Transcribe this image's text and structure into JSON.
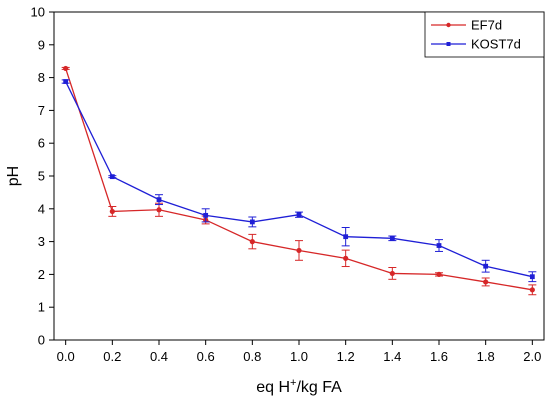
{
  "chart_data": {
    "type": "line",
    "x": [
      0.0,
      0.2,
      0.4,
      0.6,
      0.8,
      1.0,
      1.2,
      1.4,
      1.6,
      1.8,
      2.0
    ],
    "x_ticks": [
      "0.0",
      "0.2",
      "0.4",
      "0.6",
      "0.8",
      "1.0",
      "1.2",
      "1.4",
      "1.6",
      "1.8",
      "2.0"
    ],
    "y_ticks": [
      "0",
      "1",
      "2",
      "3",
      "4",
      "5",
      "6",
      "7",
      "8",
      "9",
      "10"
    ],
    "xlim": [
      -0.05,
      2.05
    ],
    "ylim": [
      0,
      10
    ],
    "xlabel_main": "eq H",
    "xlabel_sup": "+",
    "xlabel_tail": "/kg FA",
    "ylabel": "pH",
    "legend_position": "top-right",
    "series": [
      {
        "name": "EF7d",
        "color": "#d62728",
        "marker": "circle",
        "values": [
          8.28,
          3.92,
          3.97,
          3.66,
          3.0,
          2.73,
          2.49,
          2.03,
          2.0,
          1.77,
          1.53
        ],
        "errors": [
          0.03,
          0.15,
          0.2,
          0.12,
          0.22,
          0.3,
          0.25,
          0.18,
          0.05,
          0.12,
          0.15
        ]
      },
      {
        "name": "KOST7d",
        "color": "#1f1fd6",
        "marker": "square",
        "values": [
          7.88,
          4.98,
          4.28,
          3.8,
          3.6,
          3.82,
          3.15,
          3.1,
          2.88,
          2.25,
          1.93
        ],
        "errors": [
          0.05,
          0.03,
          0.15,
          0.2,
          0.15,
          0.08,
          0.28,
          0.07,
          0.18,
          0.18,
          0.15
        ]
      }
    ]
  }
}
